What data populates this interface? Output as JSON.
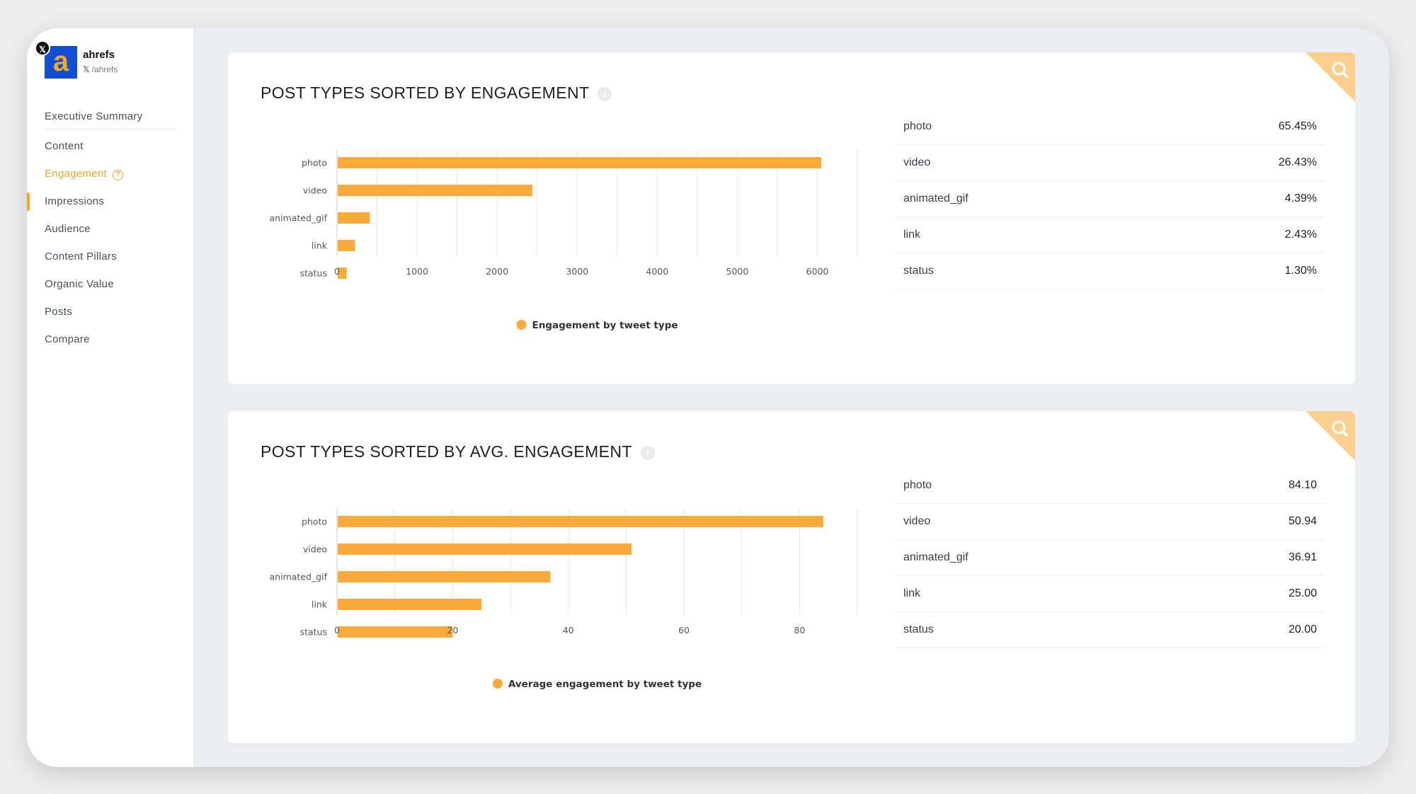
{
  "colors": {
    "accent": "#f5a623",
    "bar": "#f8ab3a",
    "brand_blue": "#0f4fd6"
  },
  "brand": {
    "name": "ahrefs",
    "handle": "/ahrefs",
    "network_icon": "x-icon"
  },
  "nav": {
    "items": [
      {
        "label": "Executive Summary"
      },
      {
        "label": "Content"
      },
      {
        "label": "Engagement",
        "active": true
      },
      {
        "label": "Impressions"
      },
      {
        "label": "Audience"
      },
      {
        "label": "Content Pillars"
      },
      {
        "label": "Organic Value"
      },
      {
        "label": "Posts"
      },
      {
        "label": "Compare"
      }
    ]
  },
  "cards": [
    {
      "title": "POST TYPES SORTED BY ENGAGEMENT",
      "stats": [
        {
          "label": "photo",
          "value": "65.45%"
        },
        {
          "label": "video",
          "value": "26.43%"
        },
        {
          "label": "animated_gif",
          "value": "4.39%"
        },
        {
          "label": "link",
          "value": "2.43%"
        },
        {
          "label": "status",
          "value": "1.30%"
        }
      ]
    },
    {
      "title": "POST TYPES SORTED BY AVG. ENGAGEMENT",
      "stats": [
        {
          "label": "photo",
          "value": "84.10"
        },
        {
          "label": "video",
          "value": "50.94"
        },
        {
          "label": "animated_gif",
          "value": "36.91"
        },
        {
          "label": "link",
          "value": "25.00"
        },
        {
          "label": "status",
          "value": "20.00"
        }
      ]
    }
  ],
  "chart_data": [
    {
      "type": "bar",
      "orientation": "horizontal",
      "categories": [
        "photo",
        "video",
        "animated_gif",
        "link",
        "status"
      ],
      "values": [
        6050,
        2440,
        410,
        225,
        120
      ],
      "xlim": [
        0,
        6500
      ],
      "ticks": [
        0,
        1000,
        2000,
        3000,
        4000,
        5000,
        6000
      ],
      "grid_step": 500,
      "legend": "Engagement by tweet type",
      "legend_position": "bottom"
    },
    {
      "type": "bar",
      "orientation": "horizontal",
      "categories": [
        "photo",
        "video",
        "animated_gif",
        "link",
        "status"
      ],
      "values": [
        84.1,
        50.94,
        36.91,
        25.0,
        20.0
      ],
      "xlim": [
        0,
        90
      ],
      "ticks": [
        0,
        20,
        40,
        60,
        80
      ],
      "grid_step": 10,
      "legend": "Average engagement by tweet type",
      "legend_position": "bottom"
    }
  ]
}
